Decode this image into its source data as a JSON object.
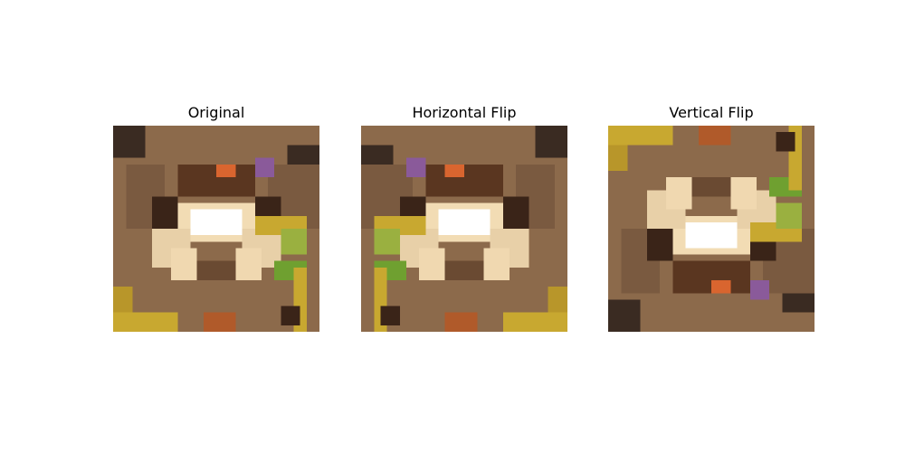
{
  "panels": [
    {
      "title": "Original",
      "transform": "none"
    },
    {
      "title": "Horizontal Flip",
      "transform": "flip-h"
    },
    {
      "title": "Vertical Flip",
      "transform": "flip-v"
    }
  ],
  "colors": {
    "background": "#ffffff",
    "frog_body": "#f2dcb4",
    "dirt": "#8c6a4b",
    "shadow": "#3a2418",
    "orange_eye": "#d9652f",
    "purple_spot": "#8a5a9a",
    "green_leaf": "#6fa030",
    "yellow_stem": "#c8a830"
  }
}
